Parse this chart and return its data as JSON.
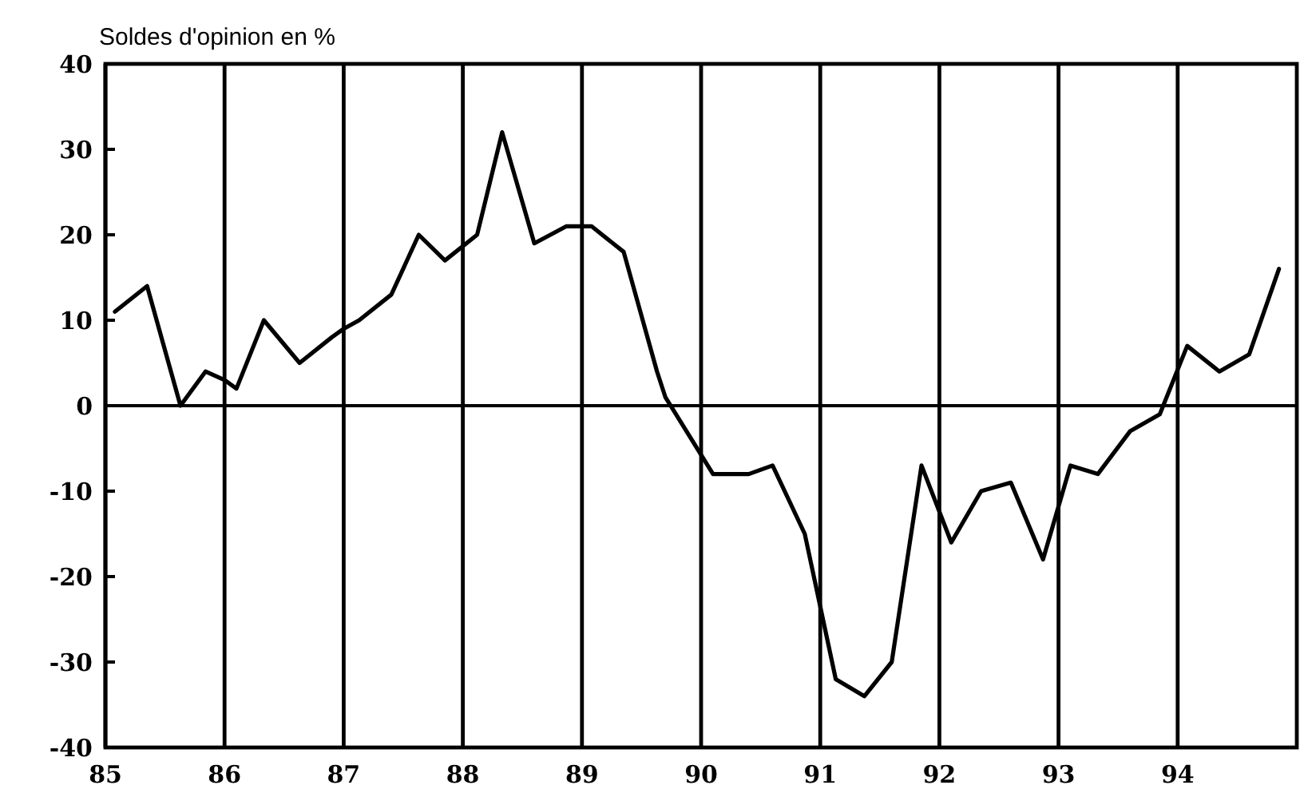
{
  "chart_data": {
    "type": "line",
    "ylabel": "Soldes d'opinion en %",
    "x": [
      85.08,
      85.35,
      85.63,
      85.84,
      86.0,
      86.1,
      86.33,
      86.63,
      86.9,
      87.0,
      87.13,
      87.4,
      87.63,
      87.85,
      88.12,
      88.33,
      88.6,
      88.87,
      89.08,
      89.35,
      89.63,
      89.7,
      90.1,
      90.4,
      90.6,
      90.87,
      91.13,
      91.37,
      91.6,
      91.85,
      92.1,
      92.35,
      92.6,
      92.87,
      93.1,
      93.33,
      93.6,
      93.85,
      94.08,
      94.35,
      94.6,
      94.85
    ],
    "series": [
      {
        "color": "#000000",
        "values": [
          11,
          14,
          0,
          4,
          3,
          2,
          10,
          5,
          8,
          9,
          10,
          13,
          20,
          17,
          20,
          32,
          19,
          21,
          21,
          18,
          4,
          1,
          -8,
          -8,
          -7,
          -15,
          -32,
          -34,
          -30,
          -7,
          -16,
          -10,
          -9,
          -18,
          -7,
          -8,
          -3,
          -1,
          7,
          4,
          6,
          16
        ]
      }
    ],
    "xlim": [
      85,
      95
    ],
    "xticks": [
      85,
      86,
      87,
      88,
      89,
      90,
      91,
      92,
      93,
      94
    ],
    "ylim": [
      -40,
      40
    ],
    "yticks": [
      40,
      30,
      20,
      10,
      0,
      -10,
      -20,
      -30,
      -40
    ],
    "grid": "x",
    "marker": "none",
    "line_style": "solid",
    "ref_lines": [
      {
        "axis": "y",
        "value": 0
      }
    ]
  }
}
